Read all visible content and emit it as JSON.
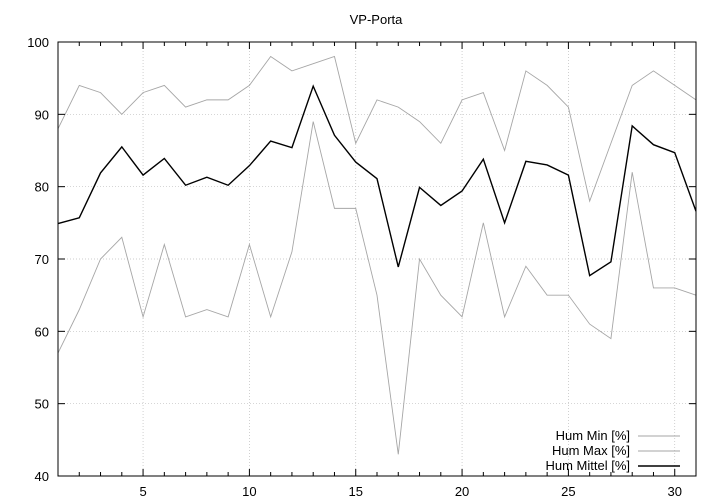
{
  "chart_data": {
    "type": "line",
    "title": "VP-Porta",
    "xlabel": "",
    "ylabel": "",
    "xlim": [
      1,
      31
    ],
    "ylim": [
      40,
      100
    ],
    "x_ticks": [
      5,
      10,
      15,
      20,
      25,
      30
    ],
    "y_ticks": [
      40,
      50,
      60,
      70,
      80,
      90,
      100
    ],
    "grid": true,
    "legend_position": "bottom-right",
    "x": [
      1,
      2,
      3,
      4,
      5,
      6,
      7,
      8,
      9,
      10,
      11,
      12,
      13,
      14,
      15,
      16,
      17,
      18,
      19,
      20,
      21,
      22,
      23,
      24,
      25,
      26,
      27,
      28,
      29,
      30,
      31
    ],
    "series": [
      {
        "name": "Hum Min [%]",
        "color": "#a6a6a6",
        "values": [
          57,
          63,
          70,
          73,
          62,
          72,
          62,
          63,
          62,
          72,
          62,
          71,
          89,
          77,
          77,
          65,
          43,
          70,
          65,
          62,
          75,
          62,
          69,
          65,
          65,
          61,
          59,
          82,
          66,
          66,
          65
        ]
      },
      {
        "name": "Hum Max [%]",
        "color": "#a6a6a6",
        "values": [
          88,
          94,
          93,
          90,
          93,
          94,
          91,
          92,
          92,
          94,
          98,
          96,
          97,
          98,
          86,
          92,
          91,
          89,
          86,
          92,
          93,
          85,
          96,
          94,
          91,
          78,
          86,
          94,
          96,
          94,
          92
        ]
      },
      {
        "name": "Hum Mittel [%]",
        "color": "#000000",
        "values": [
          74.9,
          75.7,
          81.9,
          85.5,
          81.6,
          83.9,
          80.2,
          81.3,
          80.2,
          82.9,
          86.3,
          85.4,
          93.9,
          87.1,
          83.4,
          81.1,
          68.9,
          79.9,
          77.4,
          79.4,
          83.8,
          75.0,
          83.5,
          83.0,
          81.6,
          67.7,
          69.6,
          88.4,
          85.8,
          84.7,
          76.6
        ]
      }
    ]
  }
}
